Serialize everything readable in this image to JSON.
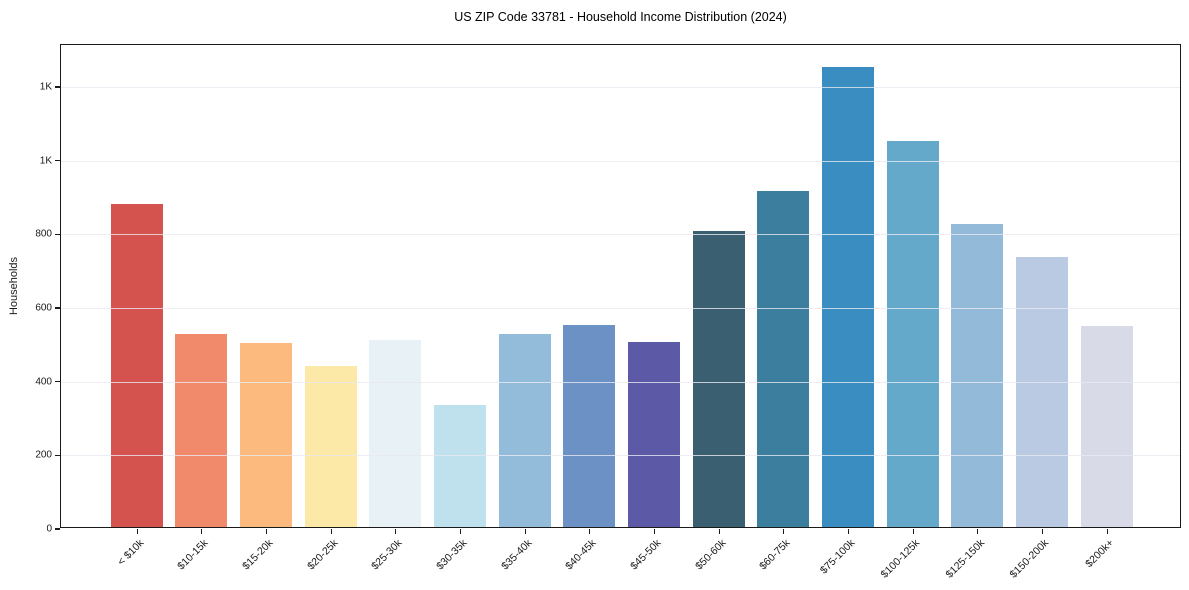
{
  "page": {
    "title": "US ZIP Code 33781 - Household Income Distribution (2024)"
  },
  "chart_data": {
    "type": "bar",
    "title": "US ZIP Code 33781 - Household Income Distribution (2024)",
    "xlabel": "",
    "ylabel": "Households",
    "categories": [
      "< $10k",
      "$10-15k",
      "$15-20k",
      "$20-25k",
      "$25-30k",
      "$30-35k",
      "$35-40k",
      "$40-45k",
      "$45-50k",
      "$50-60k",
      "$60-75k",
      "$75-100k",
      "$100-125k",
      "$125-150k",
      "$150-200k",
      "$200k+"
    ],
    "values": [
      878,
      525,
      499,
      436,
      507,
      331,
      523,
      549,
      501,
      803,
      912,
      1249,
      1048,
      822,
      733,
      546
    ],
    "bar_colors": [
      "#d5534f",
      "#f18a6a",
      "#fcba7e",
      "#fde9a7",
      "#e8f2f6",
      "#bfe1ee",
      "#92bcda",
      "#6c91c5",
      "#5c5aa7",
      "#3a5f70",
      "#3b7e9e",
      "#3a8dc1",
      "#64a9c9",
      "#94bad9",
      "#bacae2",
      "#d8dae8"
    ],
    "ylim": [
      0,
      1314
    ],
    "y_ticks": [
      {
        "value": 0,
        "label": "0"
      },
      {
        "value": 200,
        "label": "200"
      },
      {
        "value": 400,
        "label": "400"
      },
      {
        "value": 600,
        "label": "600"
      },
      {
        "value": 800,
        "label": "800"
      },
      {
        "value": 1000,
        "label": "1K"
      },
      {
        "value": 1200,
        "label": "1K"
      }
    ],
    "grid": "horizontal",
    "legend": "none",
    "colors": {
      "gridline": "#e9e9f0",
      "axis": "#1a1a1a",
      "text": "#1a1a1a",
      "background": "#ffffff"
    }
  }
}
